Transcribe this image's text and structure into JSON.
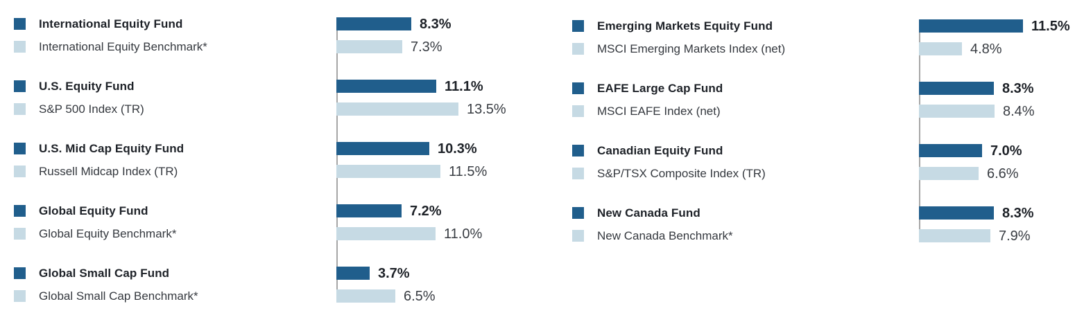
{
  "chart_data": {
    "type": "bar",
    "orientation": "horizontal",
    "unit": "percent",
    "grid": false,
    "pixels_per_percent": 13,
    "colors": {
      "fund_bar": "#205e8c",
      "benchmark_bar": "#c6dae4",
      "axis_line": "#a6a6a6",
      "fund_text": "#1d2127",
      "benchmark_text": "#34383e"
    },
    "columns": [
      {
        "groups": [
          {
            "fund": {
              "label": "International Equity Fund",
              "value": 8.3,
              "display": "8.3%"
            },
            "benchmark": {
              "label": "International Equity Benchmark*",
              "value": 7.3,
              "display": "7.3%"
            }
          },
          {
            "fund": {
              "label": "U.S. Equity Fund",
              "value": 11.1,
              "display": "11.1%"
            },
            "benchmark": {
              "label": "S&P 500 Index (TR)",
              "value": 13.5,
              "display": "13.5%"
            }
          },
          {
            "fund": {
              "label": "U.S. Mid Cap Equity Fund",
              "value": 10.3,
              "display": "10.3%"
            },
            "benchmark": {
              "label": "Russell Midcap Index (TR)",
              "value": 11.5,
              "display": "11.5%"
            }
          },
          {
            "fund": {
              "label": "Global Equity Fund",
              "value": 7.2,
              "display": "7.2%"
            },
            "benchmark": {
              "label": "Global Equity Benchmark*",
              "value": 11.0,
              "display": "11.0%"
            }
          },
          {
            "fund": {
              "label": "Global Small Cap Fund",
              "value": 3.7,
              "display": "3.7%"
            },
            "benchmark": {
              "label": "Global Small Cap Benchmark*",
              "value": 6.5,
              "display": "6.5%"
            }
          }
        ]
      },
      {
        "groups": [
          {
            "fund": {
              "label": "Emerging Markets Equity Fund",
              "value": 11.5,
              "display": "11.5%"
            },
            "benchmark": {
              "label": "MSCI Emerging Markets Index (net)",
              "value": 4.8,
              "display": "4.8%"
            }
          },
          {
            "fund": {
              "label": "EAFE Large Cap Fund",
              "value": 8.3,
              "display": "8.3%"
            },
            "benchmark": {
              "label": "MSCI EAFE Index (net)",
              "value": 8.4,
              "display": "8.4%"
            }
          },
          {
            "fund": {
              "label": "Canadian Equity Fund",
              "value": 7.0,
              "display": "7.0%"
            },
            "benchmark": {
              "label": "S&P/TSX Composite Index (TR)",
              "value": 6.6,
              "display": "6.6%"
            }
          },
          {
            "fund": {
              "label": "New Canada Fund",
              "value": 8.3,
              "display": "8.3%"
            },
            "benchmark": {
              "label": "New Canada Benchmark*",
              "value": 7.9,
              "display": "7.9%"
            }
          }
        ]
      }
    ]
  }
}
